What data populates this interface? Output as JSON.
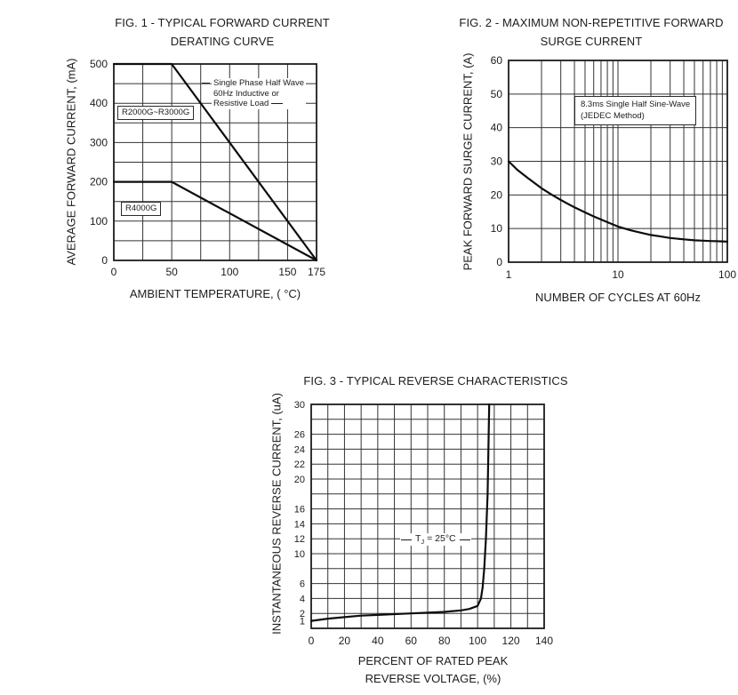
{
  "colors": {
    "ink": "#1c1c1c",
    "grid": "#333333",
    "curve": "#0d0d0d"
  },
  "fig1": {
    "title_line1": "FIG. 1 - TYPICAL FORWARD CURRENT",
    "title_line2": "DERATING CURVE",
    "ylabel": "AVERAGE FORWARD CURRENT, (mA)",
    "xlabel": "AMBIENT TEMPERATURE, ( °C)",
    "note_lines": [
      "Single Phase Half Wave",
      "60Hz Inductive or",
      "Resistive Load"
    ],
    "series_labels": [
      "R2000G~R3000G",
      "R4000G"
    ]
  },
  "fig2": {
    "title_line1": "FIG. 2 - MAXIMUM NON-REPETITIVE FORWARD",
    "title_line2": "SURGE CURRENT",
    "ylabel": "PEAK FORWARD SURGE CURRENT, (A)",
    "xlabel": "NUMBER OF CYCLES AT 60Hz",
    "note_line1": "8.3ms Single Half Sine-Wave",
    "note_line2": "(JEDEC Method)"
  },
  "fig3": {
    "title": "FIG. 3 - TYPICAL REVERSE CHARACTERISTICS",
    "ylabel": "INSTANTANEOUS REVERSE CURRENT, (uA)",
    "xlabel_line1": "PERCENT OF RATED PEAK",
    "xlabel_line2": "REVERSE VOLTAGE, (%)",
    "note": {
      "pre": "T",
      "sub": "J",
      "post": " = 25°C"
    }
  },
  "chart_data": [
    {
      "id": "fig1",
      "type": "line",
      "title": "FIG. 1 - TYPICAL FORWARD CURRENT DERATING CURVE",
      "xlabel": "AMBIENT TEMPERATURE, (°C)",
      "ylabel": "AVERAGE FORWARD CURRENT, (mA)",
      "x_scale": "linear",
      "xlim": [
        0,
        175
      ],
      "ylim": [
        0,
        500
      ],
      "xticks": [
        0,
        50,
        100,
        150,
        175
      ],
      "yticks": [
        0,
        100,
        200,
        300,
        400,
        500
      ],
      "xgrid_step": 25,
      "ygrid_step": 50,
      "grid": true,
      "annotation": "Single Phase Half Wave 60Hz Inductive or Resistive Load",
      "series": [
        {
          "name": "R2000G~R3000G",
          "points": [
            [
              0,
              500
            ],
            [
              50,
              500
            ],
            [
              175,
              0
            ]
          ]
        },
        {
          "name": "R4000G",
          "points": [
            [
              0,
              200
            ],
            [
              50,
              200
            ],
            [
              175,
              0
            ]
          ]
        }
      ]
    },
    {
      "id": "fig2",
      "type": "line",
      "title": "FIG. 2 - MAXIMUM NON-REPETITIVE FORWARD SURGE CURRENT",
      "xlabel": "NUMBER OF CYCLES AT 60Hz",
      "ylabel": "PEAK FORWARD SURGE CURRENT, (A)",
      "x_scale": "log",
      "xlim": [
        1,
        100
      ],
      "ylim": [
        0,
        60
      ],
      "xticks": [
        1,
        10,
        100
      ],
      "yticks": [
        0,
        10,
        20,
        30,
        40,
        50,
        60
      ],
      "ygrid_step": 10,
      "grid": true,
      "annotation": "8.3ms Single Half Sine-Wave (JEDEC Method)",
      "series": [
        {
          "name": "surge",
          "points": [
            [
              1,
              30
            ],
            [
              1.2,
              27.5
            ],
            [
              1.5,
              25
            ],
            [
              2,
              22
            ],
            [
              2.5,
              20
            ],
            [
              3,
              18.5
            ],
            [
              4,
              16.3
            ],
            [
              5,
              14.8
            ],
            [
              6,
              13.6
            ],
            [
              8,
              11.9
            ],
            [
              10,
              10.6
            ],
            [
              13,
              9.5
            ],
            [
              16,
              8.8
            ],
            [
              20,
              8.1
            ],
            [
              25,
              7.6
            ],
            [
              30,
              7.2
            ],
            [
              40,
              6.8
            ],
            [
              50,
              6.5
            ],
            [
              60,
              6.4
            ],
            [
              70,
              6.3
            ],
            [
              85,
              6.2
            ],
            [
              100,
              6.1
            ]
          ]
        }
      ]
    },
    {
      "id": "fig3",
      "type": "line",
      "title": "FIG. 3 - TYPICAL REVERSE CHARACTERISTICS",
      "xlabel": "PERCENT OF RATED PEAK REVERSE VOLTAGE, (%)",
      "ylabel": "INSTANTANEOUS REVERSE CURRENT, (uA)",
      "x_scale": "linear",
      "xlim": [
        0,
        140
      ],
      "ylim": [
        0,
        30
      ],
      "xticks": [
        0,
        20,
        40,
        60,
        80,
        100,
        120,
        140
      ],
      "yticks": [
        1,
        2,
        4,
        6,
        10,
        12,
        14,
        16,
        20,
        22,
        24,
        26,
        30
      ],
      "xgrid_step": 10,
      "ygrid_step": 2,
      "grid": true,
      "annotation": "TJ = 25°C",
      "series": [
        {
          "name": "TJ = 25°C",
          "points": [
            [
              0,
              1
            ],
            [
              10,
              1.3
            ],
            [
              20,
              1.5
            ],
            [
              30,
              1.7
            ],
            [
              40,
              1.8
            ],
            [
              50,
              1.9
            ],
            [
              60,
              2
            ],
            [
              70,
              2.1
            ],
            [
              80,
              2.2
            ],
            [
              90,
              2.4
            ],
            [
              95,
              2.6
            ],
            [
              100,
              3
            ],
            [
              102,
              4
            ],
            [
              103,
              5.5
            ],
            [
              104,
              8
            ],
            [
              105,
              12
            ],
            [
              106,
              18
            ],
            [
              106.5,
              24
            ],
            [
              107,
              30
            ]
          ]
        }
      ]
    }
  ]
}
